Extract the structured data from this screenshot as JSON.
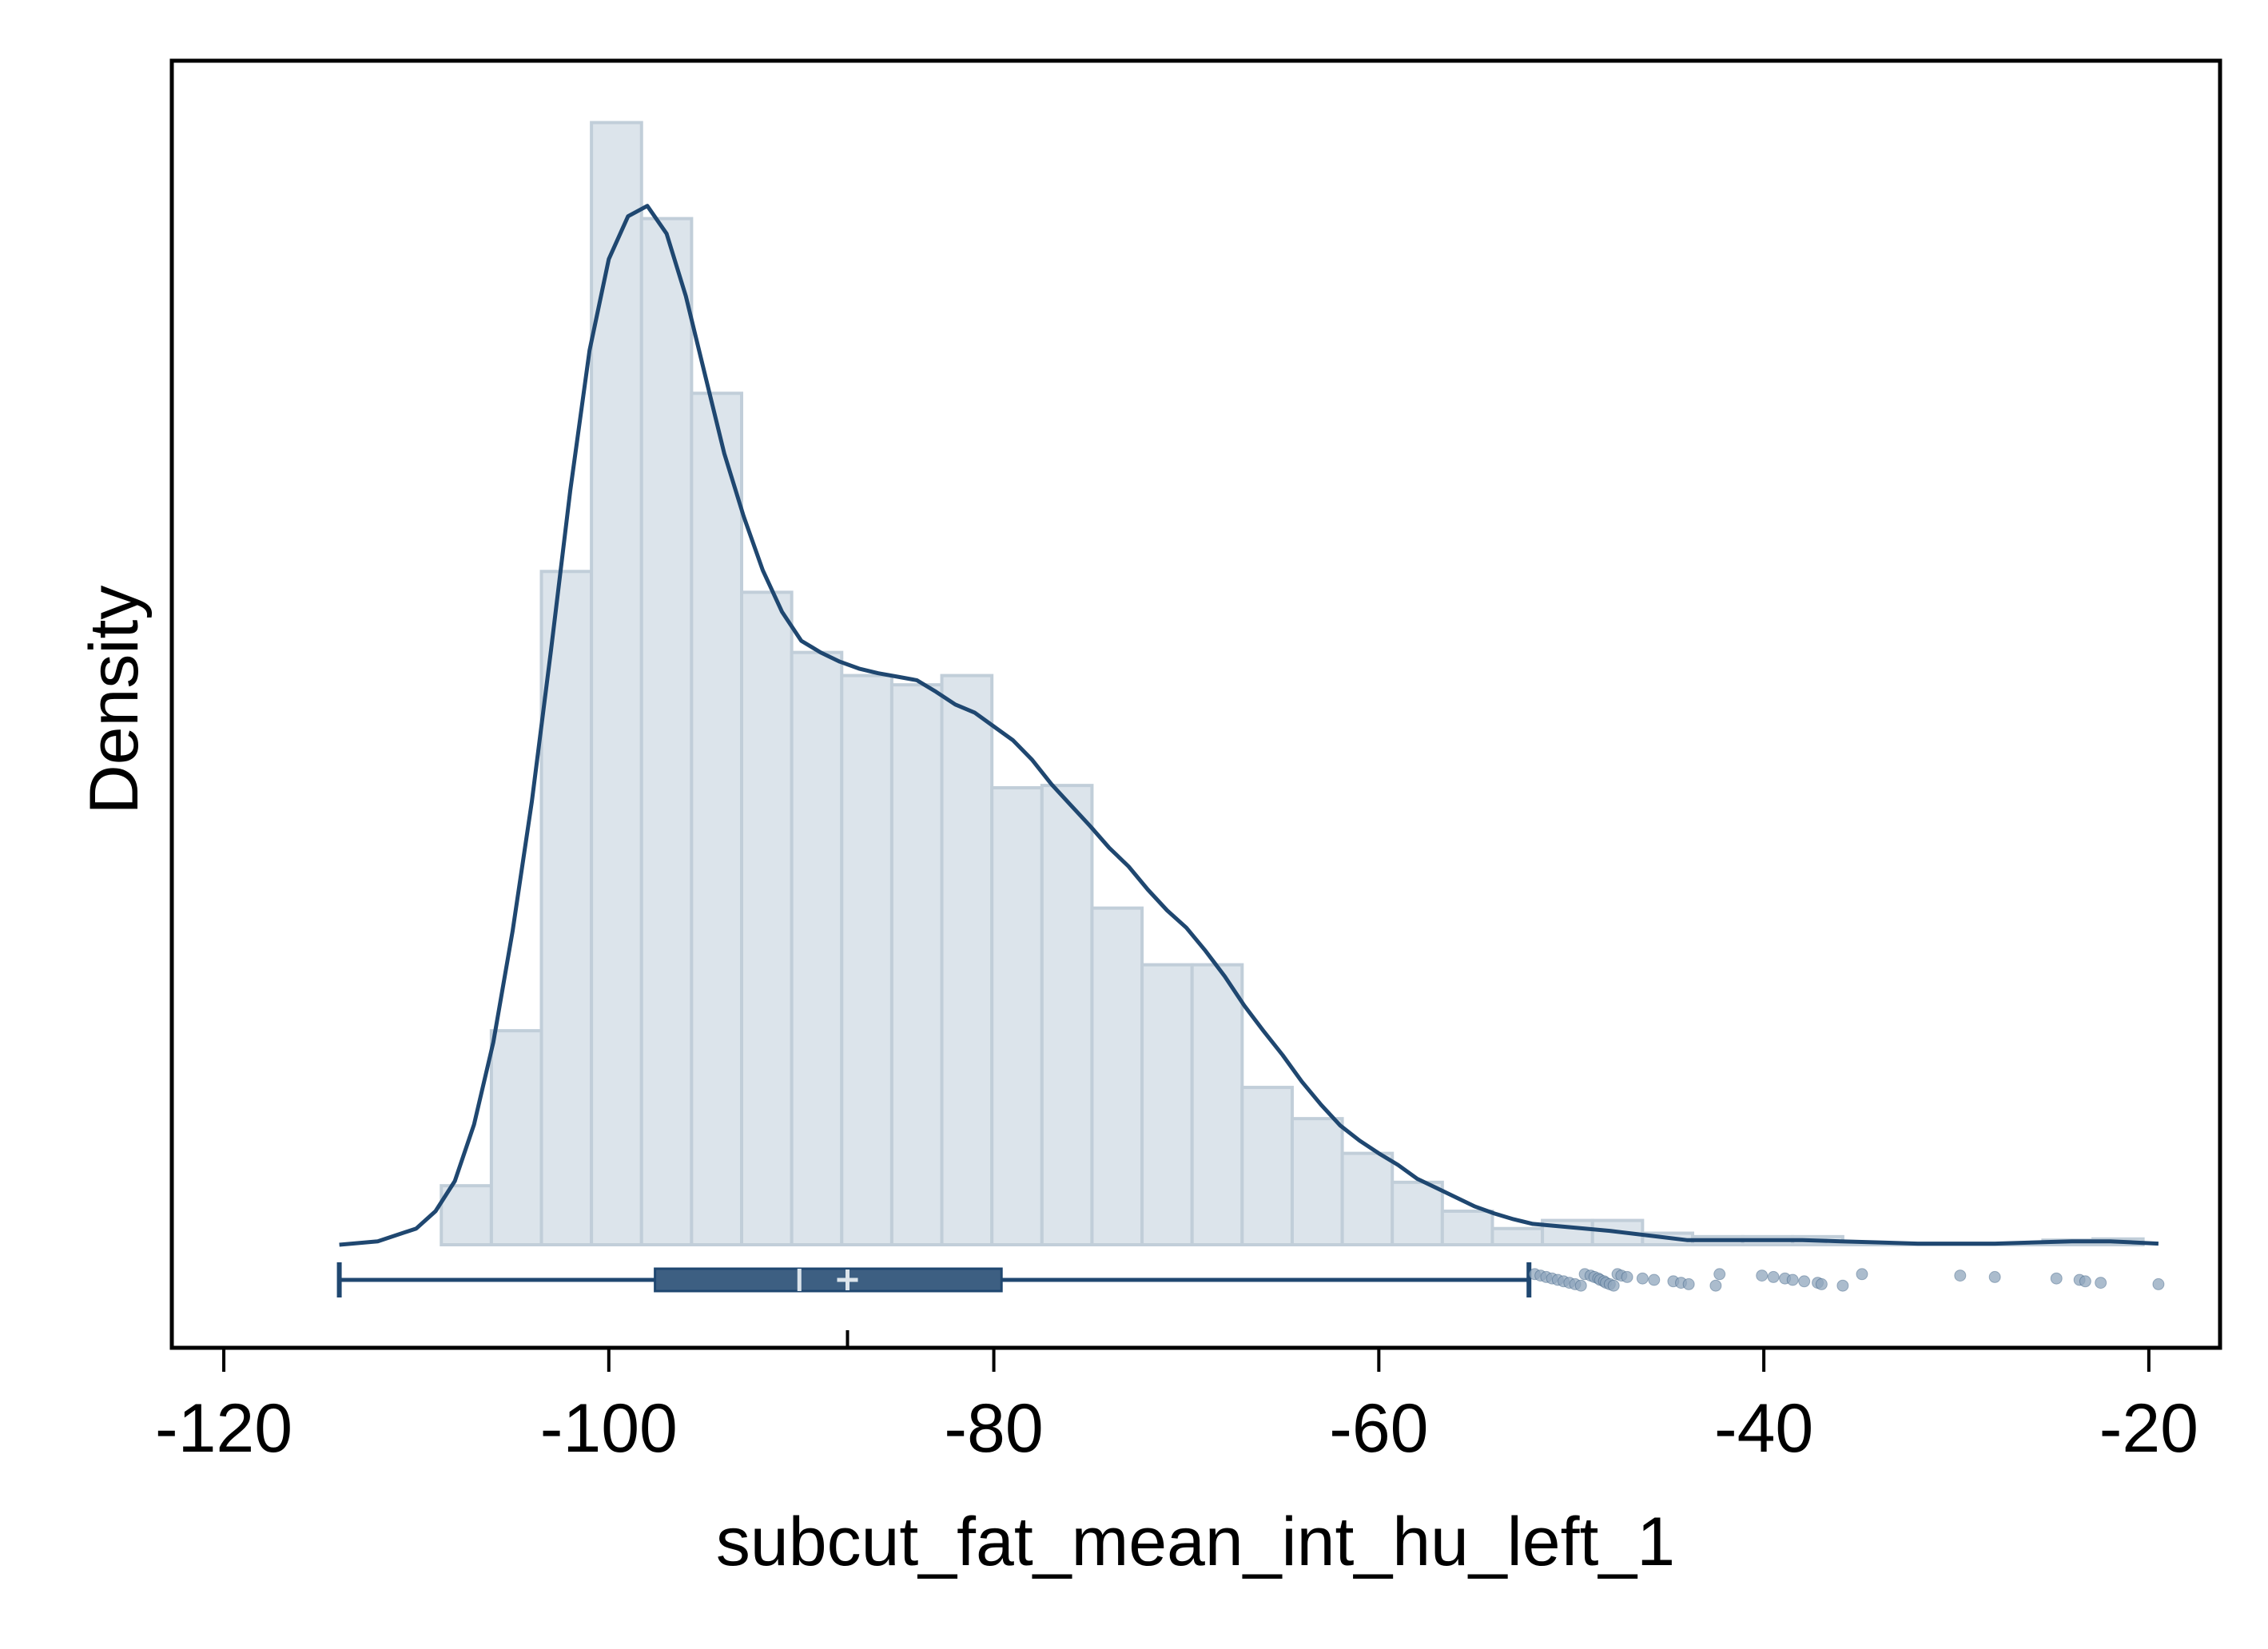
{
  "chart_data": {
    "type": "histogram",
    "title": "",
    "xlabel": "subcut_fat_mean_int_hu_left_1",
    "ylabel": "Density",
    "xlim": [
      -122.7,
      -16.3
    ],
    "ylim": [
      -0.00087,
      0.01
    ],
    "x_ticks": [
      -120,
      -100,
      -80,
      -60,
      -40,
      -20
    ],
    "x_tick_labels": [
      "-120",
      "-100",
      "-80",
      "-60",
      "-40",
      "-20"
    ],
    "y_ticks_shown": false,
    "grid": false,
    "legend": "none",
    "colors": {
      "bar_fill": "#dce4eb",
      "bar_edge": "#c1ced9",
      "line": "#1f4770",
      "box_fill": "#3d5f82",
      "outlier": "#8fa6bc",
      "frame": "#000000"
    },
    "histogram": {
      "bin_width": 2.6,
      "bins": [
        {
          "x0": -108.7,
          "x1": -106.1,
          "density": 0.00051
        },
        {
          "x0": -106.1,
          "x1": -103.5,
          "density": 0.00185
        },
        {
          "x0": -103.5,
          "x1": -100.9,
          "density": 0.00582
        },
        {
          "x0": -100.9,
          "x1": -98.3,
          "density": 0.0097
        },
        {
          "x0": -98.3,
          "x1": -95.7,
          "density": 0.00887
        },
        {
          "x0": -95.7,
          "x1": -93.1,
          "density": 0.00736
        },
        {
          "x0": -93.1,
          "x1": -90.5,
          "density": 0.00564
        },
        {
          "x0": -90.5,
          "x1": -87.9,
          "density": 0.00512
        },
        {
          "x0": -87.9,
          "x1": -85.3,
          "density": 0.00492
        },
        {
          "x0": -85.3,
          "x1": -82.7,
          "density": 0.00484
        },
        {
          "x0": -82.7,
          "x1": -80.1,
          "density": 0.00492
        },
        {
          "x0": -80.1,
          "x1": -77.5,
          "density": 0.00395
        },
        {
          "x0": -77.5,
          "x1": -74.9,
          "density": 0.00397
        },
        {
          "x0": -74.9,
          "x1": -72.3,
          "density": 0.00291
        },
        {
          "x0": -72.3,
          "x1": -69.7,
          "density": 0.00242
        },
        {
          "x0": -69.7,
          "x1": -67.1,
          "density": 0.00242
        },
        {
          "x0": -67.1,
          "x1": -64.5,
          "density": 0.00136
        },
        {
          "x0": -64.5,
          "x1": -61.9,
          "density": 0.00109
        },
        {
          "x0": -61.9,
          "x1": -59.3,
          "density": 0.00079
        },
        {
          "x0": -59.3,
          "x1": -56.7,
          "density": 0.00054
        },
        {
          "x0": -56.7,
          "x1": -54.1,
          "density": 0.00029
        },
        {
          "x0": -54.1,
          "x1": -51.5,
          "density": 0.00014
        },
        {
          "x0": -51.5,
          "x1": -48.9,
          "density": 0.00021
        },
        {
          "x0": -48.9,
          "x1": -46.3,
          "density": 0.00021
        },
        {
          "x0": -46.3,
          "x1": -43.7,
          "density": 0.0001
        },
        {
          "x0": -43.7,
          "x1": -41.1,
          "density": 7e-05
        },
        {
          "x0": -41.1,
          "x1": -38.5,
          "density": 7e-05
        },
        {
          "x0": -38.5,
          "x1": -35.9,
          "density": 7e-05
        },
        {
          "x0": -35.9,
          "x1": -33.3,
          "density": 1e-05
        },
        {
          "x0": -33.3,
          "x1": -30.7,
          "density": 1e-05
        },
        {
          "x0": -30.7,
          "x1": -28.1,
          "density": 1e-05
        },
        {
          "x0": -28.1,
          "x1": -25.5,
          "density": 1e-05
        },
        {
          "x0": -25.5,
          "x1": -22.9,
          "density": 4e-05
        },
        {
          "x0": -22.9,
          "x1": -20.3,
          "density": 5e-05
        }
      ]
    },
    "density_curve": {
      "x": [
        -114.0,
        -112.0,
        -110.0,
        -109.0,
        -108.0,
        -107.0,
        -106.0,
        -105.0,
        -104.0,
        -103.0,
        -102.0,
        -101.0,
        -100.0,
        -99.0,
        -98.0,
        -97.0,
        -96.0,
        -95.0,
        -94.0,
        -93.0,
        -92.0,
        -91.0,
        -90.0,
        -89.0,
        -88.0,
        -87.0,
        -86.0,
        -85.0,
        -84.0,
        -83.0,
        -82.0,
        -81.0,
        -80.0,
        -79.0,
        -78.0,
        -77.0,
        -76.0,
        -75.0,
        -74.0,
        -73.0,
        -72.0,
        -71.0,
        -70.0,
        -69.0,
        -68.0,
        -67.0,
        -66.0,
        -65.0,
        -64.0,
        -63.0,
        -62.0,
        -61.0,
        -60.0,
        -59.0,
        -58.0,
        -57.0,
        -56.0,
        -55.0,
        -54.0,
        -53.0,
        -52.0,
        -50.0,
        -48.0,
        -46.0,
        -44.0,
        -42.0,
        -40.0,
        -38.0,
        -36.0,
        -34.0,
        -32.0,
        -30.0,
        -28.0,
        -26.0,
        -24.0,
        -22.0,
        -19.5
      ],
      "y": [
        0.0,
        3e-05,
        0.00014,
        0.00029,
        0.00055,
        0.00104,
        0.00175,
        0.00271,
        0.00383,
        0.00514,
        0.00652,
        0.00773,
        0.00852,
        0.00889,
        0.00898,
        0.00874,
        0.0082,
        0.00752,
        0.00684,
        0.0063,
        0.00583,
        0.00547,
        0.00522,
        0.00512,
        0.00504,
        0.00498,
        0.00494,
        0.00491,
        0.00488,
        0.00478,
        0.00467,
        0.0046,
        0.00448,
        0.00436,
        0.00419,
        0.00398,
        0.0038,
        0.00362,
        0.00343,
        0.00327,
        0.00307,
        0.00289,
        0.00274,
        0.00254,
        0.00232,
        0.00207,
        0.00185,
        0.00164,
        0.00141,
        0.00121,
        0.00103,
        0.0009,
        0.00079,
        0.00069,
        0.00057,
        0.00049,
        0.00041,
        0.00033,
        0.00027,
        0.00022,
        0.00018,
        0.00015,
        0.00012,
        8e-05,
        4e-05,
        4e-05,
        4e-05,
        4e-05,
        3e-05,
        2e-05,
        1e-05,
        1e-05,
        1e-05,
        2e-05,
        3e-05,
        3e-05,
        1e-05
      ]
    },
    "boxplot": {
      "whisker_low": -114.0,
      "q1": -97.6,
      "median": -90.1,
      "mean": -87.6,
      "q3": -79.6,
      "whisker_high": -52.2,
      "outliers": [
        -51.9,
        -51.6,
        -51.3,
        -51.0,
        -50.7,
        -50.4,
        -50.1,
        -49.8,
        -49.5,
        -49.3,
        -49.0,
        -48.8,
        -48.6,
        -48.5,
        -48.3,
        -48.2,
        -48.0,
        -47.8,
        -47.6,
        -47.4,
        -47.1,
        -46.3,
        -45.7,
        -44.7,
        -44.3,
        -43.9,
        -42.5,
        -42.3,
        -40.1,
        -39.5,
        -38.9,
        -38.5,
        -37.9,
        -37.2,
        -37.0,
        -35.9,
        -34.9,
        -29.8,
        -28.0,
        -24.8,
        -23.6,
        -23.3,
        -22.5,
        -19.5
      ]
    }
  }
}
